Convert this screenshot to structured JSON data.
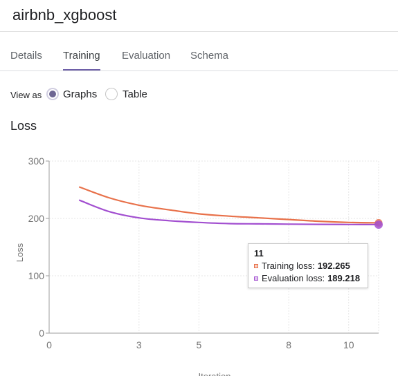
{
  "header": {
    "title": "airbnb_xgboost"
  },
  "tabs": [
    {
      "label": "Details",
      "active": false
    },
    {
      "label": "Training",
      "active": true
    },
    {
      "label": "Evaluation",
      "active": false
    },
    {
      "label": "Schema",
      "active": false
    }
  ],
  "view_as": {
    "label": "View as",
    "options": [
      {
        "label": "Graphs",
        "selected": true
      },
      {
        "label": "Table",
        "selected": false
      }
    ]
  },
  "section": {
    "title": "Loss"
  },
  "tooltip": {
    "iteration": "11",
    "rows": [
      {
        "label": "Training loss:",
        "value": "192.265"
      },
      {
        "label": "Evaluation loss:",
        "value": "189.218"
      }
    ]
  },
  "colors": {
    "training": "#e8714a",
    "evaluation": "#a24fd0",
    "accent": "#6e5fa8"
  },
  "chart_data": {
    "type": "line",
    "xlabel": "Iteration",
    "ylabel": "Loss",
    "xlim": [
      0,
      11
    ],
    "ylim": [
      0,
      300
    ],
    "x_ticks": [
      0,
      3,
      5,
      8,
      10
    ],
    "y_ticks": [
      0,
      100,
      200,
      300
    ],
    "grid": true,
    "series": [
      {
        "name": "Training loss",
        "color": "#e8714a",
        "x": [
          1,
          2,
          3,
          4,
          5,
          6,
          7,
          8,
          9,
          10,
          11
        ],
        "y": [
          255,
          236,
          223,
          215,
          208,
          204,
          201,
          198,
          195,
          193,
          192.265
        ]
      },
      {
        "name": "Evaluation loss",
        "color": "#a24fd0",
        "x": [
          1,
          2,
          3,
          4,
          5,
          6,
          7,
          8,
          9,
          10,
          11
        ],
        "y": [
          232,
          212,
          201,
          196,
          193,
          191,
          190.5,
          190,
          189.6,
          189.4,
          189.218
        ]
      }
    ],
    "highlight_x": 11
  }
}
